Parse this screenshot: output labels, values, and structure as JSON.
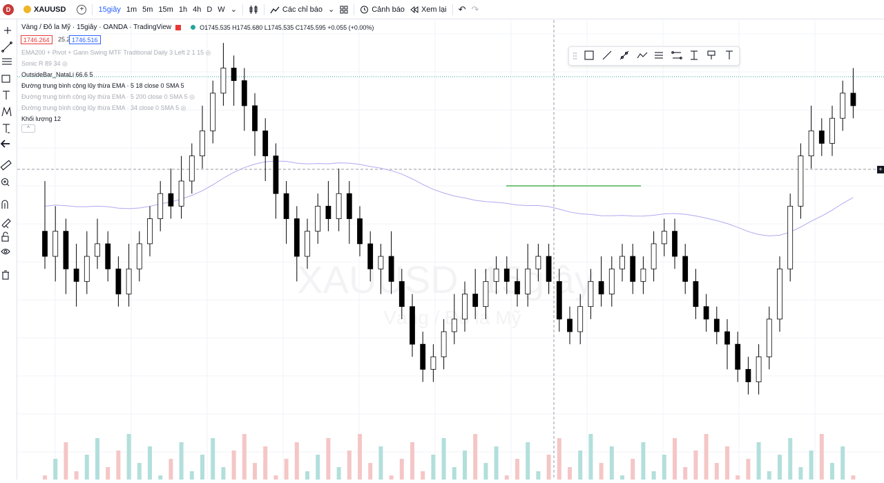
{
  "topbar": {
    "avatar_letter": "D",
    "symbol": "XAUUSD",
    "add_symbol": "+",
    "timeframes": [
      {
        "label": "15giây",
        "active": true
      },
      {
        "label": "1m",
        "active": false
      },
      {
        "label": "5m",
        "active": false
      },
      {
        "label": "15m",
        "active": false
      },
      {
        "label": "1h",
        "active": false
      },
      {
        "label": "4h",
        "active": false
      },
      {
        "label": "D",
        "active": false
      },
      {
        "label": "W",
        "active": false
      }
    ],
    "indicators_label": "Các chỉ báo",
    "alert_label": "Cảnh báo",
    "replay_label": "Xem lại",
    "dropdown_glyph": "⌄",
    "undo_glyph": "↶",
    "redo_glyph": "↷"
  },
  "header": {
    "title": "Vàng / Đô la Mỹ · 15giây · OANDA · TradingView",
    "ohlc": "O1745.535 H1745.680 L1745.535 C1745.595 +0.055 (+0.00%)",
    "bid": "1746.264",
    "spread": "25.2",
    "ask": "1746.516"
  },
  "legend": [
    {
      "text": "EMA200 + Pivot + Gann Swing MTF Traditional Daily 3 Left 2 1 15",
      "dim": true,
      "eye": true
    },
    {
      "text": "Sonic R 89 34",
      "dim": true,
      "eye": true
    },
    {
      "text": "OutsideBar_NataLi 66.6 5",
      "dim": false,
      "eye": false
    },
    {
      "text": "Đường trung bình cộng lũy thừa EMA · 5 18 close 0 SMA 5",
      "dim": false,
      "eye": false
    },
    {
      "text": "Đường trung bình cộng lũy thừa EMA · 5 200 close 0 SMA 5",
      "dim": true,
      "eye": true
    },
    {
      "text": "Đường trung bình cộng lũy thừa EMA · 34 close 0 SMA 5",
      "dim": true,
      "eye": true
    },
    {
      "text": "Khối lượng 12",
      "dim": false,
      "eye": false
    }
  ],
  "collapse_glyph": "^",
  "watermark": {
    "symbol": "XAUUSD, 15giây",
    "name": "Vàng / Đô la Mỹ"
  },
  "colors": {
    "up": "#ffffff",
    "down": "#000000",
    "outside": "#f7a21b",
    "ema": "#b0a8f0",
    "resist": "#4caf50",
    "vol_up": "#b2dfdb",
    "vol_down": "#f5c6c6",
    "dotline": "#26a69a"
  },
  "left_icons": [
    "crosshair-icon",
    "trendline-icon",
    "horizontal-lines-icon",
    "rectangle-icon",
    "text-icon",
    "pattern-icon",
    "text-cursor-icon",
    "arrow-left-icon",
    "ruler-icon",
    "zoom-icon",
    "magnet-icon",
    "lock-drawing-icon",
    "unlock-icon",
    "eye-icon",
    "trash-icon"
  ],
  "float_tools": [
    "rectangle-tool-icon",
    "line-tool-icon",
    "ray-tool-icon",
    "path-tool-icon",
    "parallel-channel-icon",
    "fib-icon",
    "text-tool-icon",
    "brush-icon",
    "text-label-icon"
  ],
  "chart_data": {
    "type": "candlestick",
    "ohlc": [
      [
        14,
        12,
        18,
        11
      ],
      [
        12,
        14,
        16,
        10
      ],
      [
        14,
        11,
        15,
        9
      ],
      [
        11,
        10,
        13,
        8
      ],
      [
        10,
        12,
        14,
        9
      ],
      [
        12,
        13,
        15,
        11
      ],
      [
        13,
        11,
        14,
        10
      ],
      [
        11,
        9,
        12,
        8
      ],
      [
        9,
        11,
        13,
        8
      ],
      [
        11,
        13,
        14,
        10
      ],
      [
        13,
        15,
        16,
        12
      ],
      [
        15,
        17,
        18,
        14
      ],
      [
        17,
        16,
        19,
        15
      ],
      [
        16,
        18,
        20,
        15
      ],
      [
        18,
        20,
        21,
        17
      ],
      [
        20,
        22,
        24,
        19
      ],
      [
        22,
        25,
        26,
        21
      ],
      [
        25,
        27,
        29,
        24
      ],
      [
        27,
        26,
        28,
        24
      ],
      [
        26,
        24,
        27,
        22
      ],
      [
        24,
        22,
        25,
        20
      ],
      [
        22,
        20,
        23,
        18
      ],
      [
        20,
        17,
        21,
        15
      ],
      [
        17,
        15,
        18,
        13
      ],
      [
        15,
        12,
        16,
        10
      ],
      [
        12,
        14,
        15,
        11
      ],
      [
        14,
        16,
        17,
        13
      ],
      [
        16,
        15,
        18,
        14
      ],
      [
        15,
        17,
        19,
        14
      ],
      [
        17,
        15,
        18,
        13
      ],
      [
        15,
        13,
        16,
        12
      ],
      [
        13,
        11,
        14,
        10
      ],
      [
        11,
        12,
        13,
        9
      ],
      [
        12,
        10,
        14,
        9
      ],
      [
        10,
        8,
        11,
        7
      ],
      [
        8,
        5,
        9,
        4
      ],
      [
        5,
        3,
        6,
        2
      ],
      [
        3,
        4,
        5,
        2
      ],
      [
        4,
        6,
        7,
        3
      ],
      [
        6,
        7,
        9,
        5
      ],
      [
        7,
        9,
        10,
        6
      ],
      [
        9,
        8,
        11,
        7
      ],
      [
        8,
        10,
        11,
        7
      ],
      [
        10,
        11,
        12,
        9
      ],
      [
        11,
        10,
        12,
        9
      ],
      [
        10,
        9,
        11,
        8
      ],
      [
        9,
        11,
        13,
        8
      ],
      [
        11,
        12,
        13,
        10
      ],
      [
        12,
        10,
        13,
        9
      ],
      [
        10,
        7,
        11,
        6
      ],
      [
        7,
        6,
        8,
        5
      ],
      [
        6,
        8,
        9,
        5
      ],
      [
        8,
        10,
        11,
        7
      ],
      [
        10,
        9,
        12,
        8
      ],
      [
        9,
        11,
        12,
        8
      ],
      [
        11,
        12,
        13,
        10
      ],
      [
        12,
        10,
        13,
        9
      ],
      [
        10,
        11,
        12,
        9
      ],
      [
        11,
        13,
        14,
        10
      ],
      [
        13,
        14,
        15,
        12
      ],
      [
        14,
        12,
        15,
        11
      ],
      [
        12,
        10,
        13,
        9
      ],
      [
        10,
        8,
        11,
        7
      ],
      [
        8,
        7,
        9,
        6
      ],
      [
        7,
        6,
        8,
        5
      ],
      [
        6,
        5,
        7,
        3
      ],
      [
        5,
        3,
        6,
        2
      ],
      [
        3,
        2,
        4,
        1
      ],
      [
        2,
        4,
        5,
        1
      ],
      [
        4,
        7,
        8,
        3
      ],
      [
        7,
        11,
        12,
        6
      ],
      [
        11,
        16,
        17,
        10
      ],
      [
        16,
        20,
        21,
        15
      ],
      [
        20,
        22,
        24,
        19
      ],
      [
        22,
        21,
        23,
        20
      ],
      [
        21,
        23,
        24,
        20
      ],
      [
        23,
        25,
        26,
        22
      ],
      [
        25,
        24,
        27,
        23
      ]
    ]
  }
}
